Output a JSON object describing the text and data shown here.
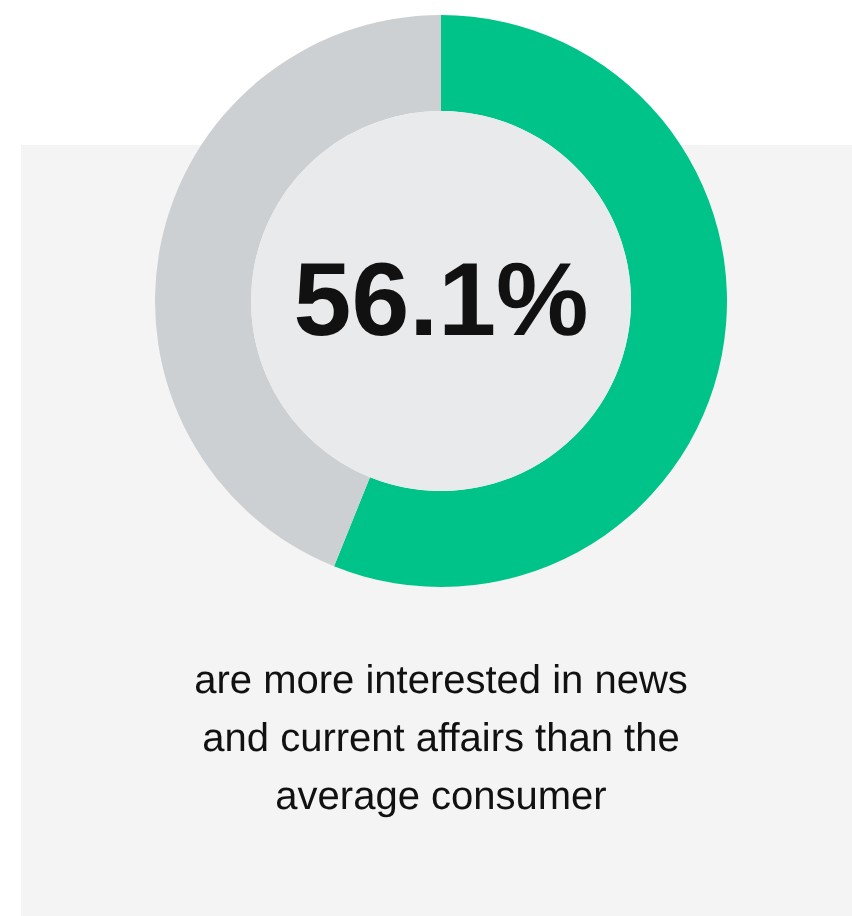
{
  "chart_data": {
    "type": "donut",
    "categories": [
      null,
      null
    ],
    "values": [
      56.1,
      43.9
    ],
    "colors": [
      "#00c389",
      "#cdd0d3"
    ],
    "value_labels": [
      "56.1%",
      null
    ],
    "annotations": [
      "are more interested in news and current affairs than the average consumer"
    ]
  }
}
